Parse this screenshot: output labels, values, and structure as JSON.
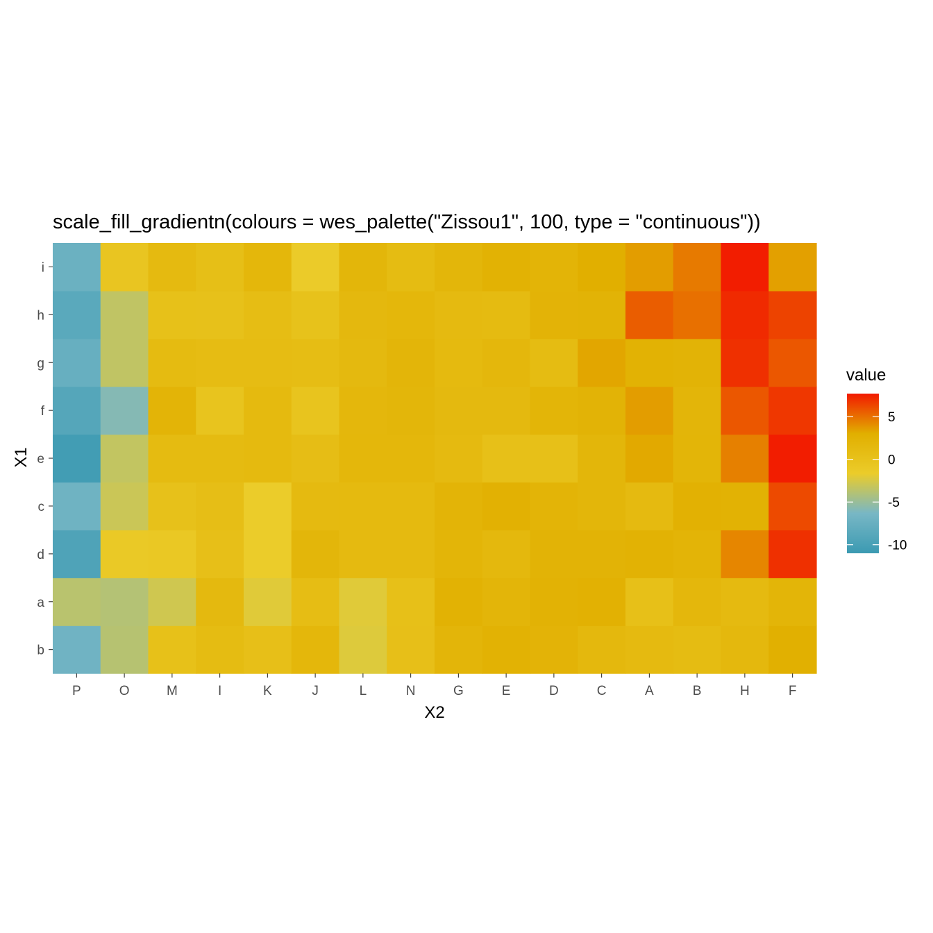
{
  "chart_data": {
    "type": "heatmap",
    "title": "scale_fill_gradientn(colours = wes_palette(\"Zissou1\", 100, type = \"continuous\"))",
    "xlabel": "X2",
    "ylabel": "X1",
    "x_categories": [
      "P",
      "O",
      "M",
      "I",
      "K",
      "J",
      "L",
      "N",
      "G",
      "E",
      "D",
      "C",
      "A",
      "B",
      "H",
      "F"
    ],
    "y_categories": [
      "b",
      "a",
      "d",
      "c",
      "e",
      "f",
      "g",
      "h",
      "i"
    ],
    "values": [
      [
        -6.9,
        -3.8,
        0.2,
        1.0,
        0.4,
        1.8,
        -2.2,
        0.4,
        2.0,
        2.6,
        2.3,
        1.6,
        1.2,
        1.0,
        1.6,
        2.9
      ],
      [
        -3.7,
        -3.9,
        -2.8,
        1.4,
        -2.1,
        0.8,
        -2.1,
        0.3,
        2.6,
        2.0,
        2.5,
        2.7,
        0.3,
        1.7,
        1.2,
        2.1
      ],
      [
        -9.5,
        -1.2,
        -1.0,
        0.4,
        -1.6,
        1.9,
        1.2,
        1.2,
        2.1,
        1.6,
        2.4,
        2.4,
        2.6,
        2.2,
        4.3,
        7.0
      ],
      [
        -7.0,
        -3.0,
        0.1,
        0.6,
        -1.6,
        1.2,
        1.3,
        1.3,
        2.2,
        2.7,
        2.2,
        1.9,
        1.2,
        2.7,
        2.6,
        6.2
      ],
      [
        -10.5,
        -3.3,
        1.1,
        1.1,
        1.3,
        0.7,
        1.8,
        1.8,
        1.2,
        0.3,
        0.3,
        1.9,
        3.2,
        2.1,
        4.5,
        7.6
      ],
      [
        -9.0,
        -5.8,
        2.2,
        -0.3,
        1.3,
        -0.3,
        1.7,
        1.9,
        1.4,
        1.4,
        2.1,
        2.4,
        3.6,
        2.0,
        5.8,
        6.8
      ],
      [
        -7.6,
        -3.4,
        1.1,
        0.9,
        0.9,
        0.8,
        1.4,
        2.0,
        1.3,
        1.7,
        1.0,
        3.3,
        2.6,
        2.4,
        7.0,
        5.8
      ],
      [
        -8.6,
        -3.4,
        0.2,
        0.1,
        0.8,
        0.0,
        1.5,
        1.8,
        1.2,
        1.1,
        2.3,
        2.4,
        5.6,
        5.0,
        7.2,
        6.4
      ],
      [
        -7.3,
        -0.6,
        1.2,
        0.5,
        1.8,
        -1.5,
        1.9,
        1.0,
        1.9,
        2.6,
        2.2,
        3.0,
        3.6,
        4.7,
        7.6,
        3.5
      ]
    ],
    "value_range": [
      -11,
      7.7
    ],
    "legend": {
      "title": "value",
      "placement": "right",
      "breaks": [
        5,
        0,
        -5,
        -10
      ],
      "break_labels": [
        "5",
        "0",
        "-5",
        "-10"
      ]
    },
    "grid": false
  },
  "colors": {
    "palette_zissou1": [
      "#3B9AB2",
      "#78B7C5",
      "#EBCC2A",
      "#E1AF00",
      "#F21A00"
    ],
    "tick_text": "#4d4d4d"
  }
}
